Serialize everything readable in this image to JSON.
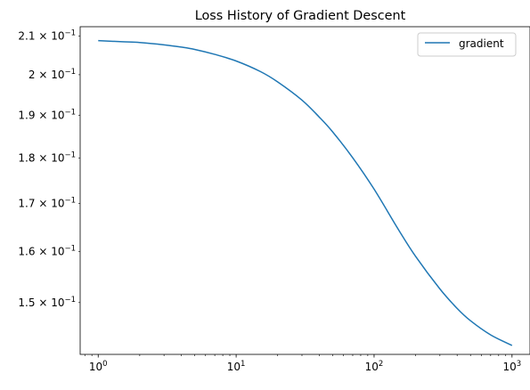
{
  "chart_data": {
    "type": "line",
    "title": "Loss History of Gradient Descent",
    "xlabel": "",
    "ylabel": "",
    "xscale": "log",
    "yscale": "log",
    "xlim": [
      0.74,
      1350
    ],
    "ylim": [
      0.1405,
      0.2125
    ],
    "grid": false,
    "legend_position": "upper right",
    "x_ticks": [
      {
        "value": 1,
        "base": "10",
        "exp": "0"
      },
      {
        "value": 10,
        "base": "10",
        "exp": "1"
      },
      {
        "value": 100,
        "base": "10",
        "exp": "2"
      },
      {
        "value": 1000,
        "base": "10",
        "exp": "3"
      }
    ],
    "y_ticks": [
      {
        "value": 0.21,
        "mantissa": "2.1",
        "base": "10",
        "exp": "−1"
      },
      {
        "value": 0.2,
        "mantissa": "2",
        "base": "10",
        "exp": "−1"
      },
      {
        "value": 0.19,
        "mantissa": "1.9",
        "base": "10",
        "exp": "−1"
      },
      {
        "value": 0.18,
        "mantissa": "1.8",
        "base": "10",
        "exp": "−1"
      },
      {
        "value": 0.17,
        "mantissa": "1.7",
        "base": "10",
        "exp": "−1"
      },
      {
        "value": 0.16,
        "mantissa": "1.6",
        "base": "10",
        "exp": "−1"
      },
      {
        "value": 0.15,
        "mantissa": "1.5",
        "base": "10",
        "exp": "−1"
      }
    ],
    "series": [
      {
        "name": "gradient",
        "color": "#1f77b4",
        "x": [
          1,
          1.5,
          2,
          3,
          4,
          5,
          7,
          10,
          15,
          20,
          30,
          40,
          50,
          70,
          100,
          150,
          200,
          300,
          400,
          500,
          700,
          1000
        ],
        "y": [
          0.2088,
          0.2085,
          0.2083,
          0.2077,
          0.2071,
          0.2065,
          0.2052,
          0.2035,
          0.2008,
          0.1982,
          0.1937,
          0.1896,
          0.1861,
          0.1801,
          0.1731,
          0.1645,
          0.159,
          0.1526,
          0.1489,
          0.1466,
          0.144,
          0.1421
        ]
      }
    ]
  }
}
